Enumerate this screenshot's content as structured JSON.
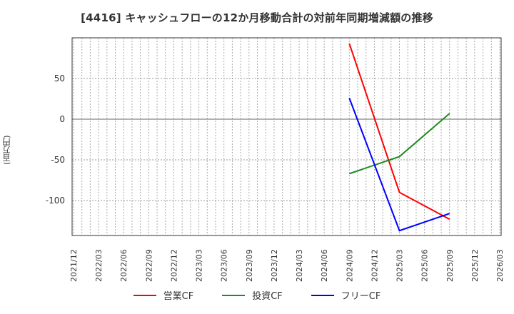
{
  "title": "[4416]  キャッシュフローの12か月移動合計の対前年同期増減額の推移",
  "y_axis_label": "(百万円)",
  "legend": [
    {
      "label": "営業CF",
      "color": "#ff0000"
    },
    {
      "label": "投資CF",
      "color": "#228b22"
    },
    {
      "label": "フリーCF",
      "color": "#0000ff"
    }
  ],
  "chart_data": {
    "type": "line",
    "title": "[4416]  キャッシュフローの12か月移動合計の対前年同期増減額の推移",
    "xlabel": "",
    "ylabel": "(百万円)",
    "ylim": [
      -143,
      96
    ],
    "yticks": [
      50,
      0,
      -50,
      -100
    ],
    "grid": true,
    "legend_position": "bottom",
    "categories": [
      "2021/12",
      "2022/03",
      "2022/06",
      "2022/09",
      "2022/12",
      "2023/03",
      "2023/06",
      "2023/09",
      "2023/12",
      "2024/03",
      "2024/06",
      "2024/09",
      "2024/12",
      "2025/03",
      "2025/06",
      "2025/09",
      "2025/12",
      "2026/03"
    ],
    "series": [
      {
        "name": "営業CF",
        "color": "#ff0000",
        "points": [
          {
            "x": "2024/09",
            "y": 93
          },
          {
            "x": "2025/03",
            "y": -90
          },
          {
            "x": "2025/09",
            "y": -123
          }
        ]
      },
      {
        "name": "投資CF",
        "color": "#228b22",
        "points": [
          {
            "x": "2024/09",
            "y": -67
          },
          {
            "x": "2025/03",
            "y": -46
          },
          {
            "x": "2025/09",
            "y": 7
          }
        ]
      },
      {
        "name": "フリーCF",
        "color": "#0000ff",
        "points": [
          {
            "x": "2024/09",
            "y": 26
          },
          {
            "x": "2025/03",
            "y": -137
          },
          {
            "x": "2025/09",
            "y": -116
          }
        ]
      }
    ]
  }
}
